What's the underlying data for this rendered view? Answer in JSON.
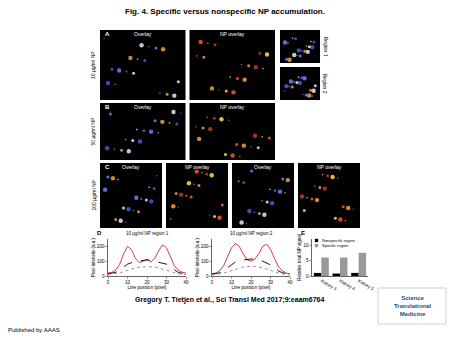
{
  "header": {
    "title": "Fig. 4. Specific versus nonspecific NP accumulation."
  },
  "panels": [
    {
      "letter": "A",
      "row_label": "10 μg/ml NP",
      "images": [
        "Overlay",
        "NP overlay"
      ],
      "insets": [
        "Region 1",
        "Region 2"
      ]
    },
    {
      "letter": "B",
      "row_label": "50 μg/ml NP",
      "images": [
        "Overlay",
        "NP overlay"
      ]
    },
    {
      "letter": "C",
      "row_label": "100 μg/ml NP",
      "images": [
        "Overlay",
        "NP overlay",
        "Overlay",
        "NP overlay"
      ]
    }
  ],
  "chart_panel_letters": [
    "D",
    "E"
  ],
  "chart_data": [
    {
      "type": "line",
      "title": "10 μg/ml NP region 1",
      "x_label": "Line position (pixel)",
      "y_label": "Pixel intensity (a.u.)",
      "x": [
        0,
        2,
        4,
        6,
        8,
        10,
        12,
        14,
        16,
        18,
        20,
        22,
        24,
        26,
        28,
        30,
        32,
        34,
        36,
        38,
        40
      ],
      "series": [
        {
          "color": "#d62728",
          "line_style": "solid",
          "values": [
            20,
            25,
            40,
            80,
            150,
            200,
            180,
            120,
            90,
            100,
            110,
            95,
            120,
            170,
            210,
            190,
            130,
            70,
            40,
            25,
            20
          ]
        },
        {
          "color": "#000000",
          "line_style": "dash",
          "values": [
            15,
            18,
            25,
            40,
            60,
            80,
            90,
            95,
            100,
            105,
            110,
            105,
            100,
            95,
            90,
            80,
            60,
            40,
            25,
            18,
            15
          ]
        },
        {
          "color": "#888888",
          "line_style": "dot",
          "values": [
            10,
            12,
            15,
            20,
            30,
            40,
            50,
            55,
            60,
            62,
            65,
            62,
            60,
            55,
            50,
            40,
            30,
            20,
            15,
            12,
            10
          ]
        }
      ],
      "xlim": [
        0,
        40
      ],
      "xticks": [
        0,
        10,
        20,
        30,
        40
      ],
      "ylim": [
        0,
        250
      ],
      "yticks": [
        0,
        100,
        200
      ]
    },
    {
      "type": "line",
      "title": "10 μg/ml NP region 2",
      "x_label": "Line position (pixel)",
      "y_label": "Pixel intensity (a.u.)",
      "x": [
        0,
        2,
        4,
        6,
        8,
        10,
        12,
        14,
        16,
        18,
        20,
        22,
        24,
        26,
        28,
        30,
        32,
        34,
        36,
        38,
        40
      ],
      "series": [
        {
          "color": "#d62728",
          "line_style": "solid",
          "values": [
            15,
            20,
            35,
            70,
            130,
            190,
            220,
            200,
            150,
            110,
            100,
            115,
            150,
            200,
            215,
            180,
            120,
            65,
            35,
            20,
            15
          ]
        },
        {
          "color": "#000000",
          "line_style": "dash",
          "values": [
            12,
            15,
            22,
            35,
            55,
            75,
            95,
            105,
            110,
            112,
            115,
            112,
            110,
            100,
            90,
            75,
            55,
            35,
            22,
            15,
            12
          ]
        },
        {
          "color": "#888888",
          "line_style": "dot",
          "values": [
            8,
            10,
            14,
            20,
            28,
            38,
            48,
            55,
            60,
            64,
            66,
            64,
            60,
            55,
            48,
            38,
            28,
            20,
            14,
            10,
            8
          ]
        }
      ],
      "xlim": [
        0,
        40
      ],
      "xticks": [
        0,
        10,
        20,
        30,
        40
      ],
      "ylim": [
        0,
        250
      ],
      "yticks": [
        0,
        100,
        200
      ]
    },
    {
      "type": "bar",
      "y_label": "Relative total NP signal",
      "categories": [
        "Kidney 3",
        "Kidney 4",
        "Kidney 5"
      ],
      "series": [
        {
          "name": "Nonspecific region",
          "color": "#000000",
          "values": [
            1,
            0.8,
            1
          ]
        },
        {
          "name": "Specific region",
          "color": "#999999",
          "values": [
            6,
            6,
            7.5
          ]
        }
      ],
      "ylim": [
        0,
        12
      ],
      "yticks": [
        0,
        5,
        10
      ],
      "legend": "top left"
    }
  ],
  "footer": {
    "citation": "Gregory T. Tietjen et al., Sci Transl Med 2017;9:eaam6764",
    "logo": [
      "Science",
      "Translational",
      "Medicine"
    ],
    "publisher": "Published by AAAS"
  }
}
